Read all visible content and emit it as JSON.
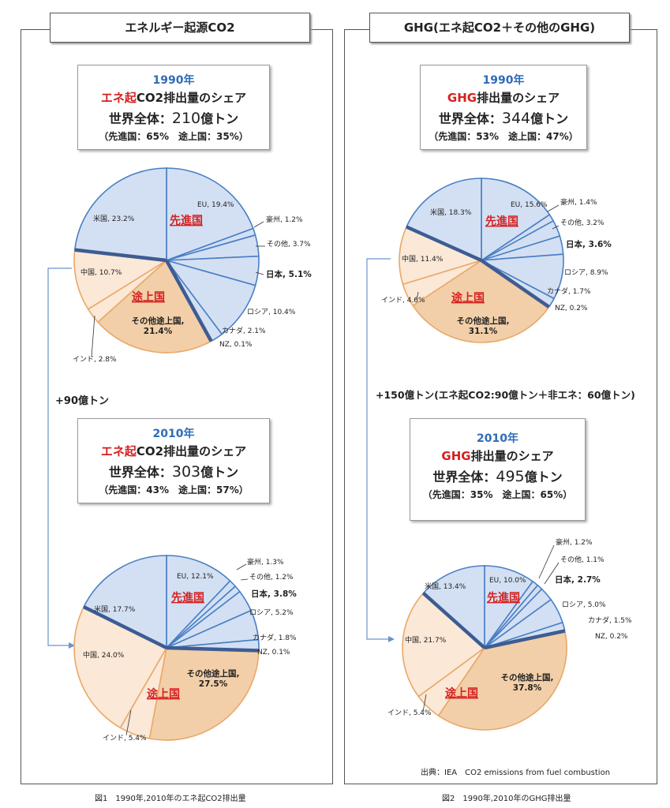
{
  "left_panel": {
    "title": "エネルギー起源CO2",
    "box1990": {
      "year": "1990年",
      "red": "エネ起",
      "rest": "CO2排出量のシェア",
      "total_prefix": "世界全体：",
      "total_num": "210",
      "total_suffix": "億トン",
      "split": "（先進国：65%　途上国：35%）"
    },
    "box2010": {
      "year": "2010年",
      "red": "エネ起",
      "rest": "CO2排出量のシェア",
      "total_prefix": "世界全体：",
      "total_num": "303",
      "total_suffix": "億トン",
      "split": "（先進国：43%　途上国：57%）"
    },
    "increase": "+90億トン",
    "caption": "図1　1990年,2010年のエネ起CO2排出量"
  },
  "right_panel": {
    "title": "GHG(エネ起CO2＋その他のGHG)",
    "box1990": {
      "year": "1990年",
      "red": "GHG",
      "rest": "排出量のシェア",
      "total_prefix": "世界全体：",
      "total_num": "344",
      "total_suffix": "億トン",
      "split": "（先進国：53%　途上国：47%）"
    },
    "box2010": {
      "year": "2010年",
      "red": "GHG",
      "rest": "排出量のシェア",
      "total_prefix": "世界全体：",
      "total_num": "495",
      "total_suffix": "億トン",
      "split": "（先進国：35%　途上国：65%）"
    },
    "increase": "+150億トン(エネ起CO2:90億トン＋非エネ：60億トン)",
    "source": "出典：IEA　CO2 emissions from fuel combustion",
    "caption": "図2　1990年,2010年のGHG排出量"
  },
  "colors": {
    "developed_fill": "#d3e0f3",
    "developed_stroke": "#4a7fc4",
    "developing_fill": "#fbe8d6",
    "other_dev_fill": "#f2cfa8",
    "developing_stroke": "#e9a86a",
    "divider": "#3d5c93",
    "title_red": "#d62020",
    "year_blue": "#2e6bb8"
  },
  "chart_data": [
    {
      "type": "pie",
      "title": "エネ起CO2 1990年",
      "group_labels": {
        "developed": "先進国",
        "developing": "途上国"
      },
      "slices": [
        {
          "label": "EU",
          "value": 19.4,
          "group": "developed",
          "text": "EU, 19.4%"
        },
        {
          "label": "豪州",
          "value": 1.2,
          "group": "developed",
          "text": "豪州, 1.2%"
        },
        {
          "label": "その他",
          "value": 3.7,
          "group": "developed",
          "text": "その他, 3.7%"
        },
        {
          "label": "日本",
          "value": 5.1,
          "group": "developed",
          "text": "日本, 5.1%"
        },
        {
          "label": "ロシア",
          "value": 10.4,
          "group": "developed",
          "text": "ロシア, 10.4%"
        },
        {
          "label": "カナダ",
          "value": 2.1,
          "group": "developed",
          "text": "カナダ, 2.1%"
        },
        {
          "label": "NZ",
          "value": 0.1,
          "group": "developed",
          "text": "NZ, 0.1%"
        },
        {
          "label": "その他途上国",
          "value": 21.4,
          "group": "developing",
          "text": "その他途上国,21.4%"
        },
        {
          "label": "インド",
          "value": 2.8,
          "group": "developing",
          "text": "インド, 2.8%"
        },
        {
          "label": "中国",
          "value": 10.7,
          "group": "developing",
          "text": "中国, 10.7%"
        },
        {
          "label": "米国",
          "value": 23.2,
          "group": "developed",
          "text": "米国, 23.2%"
        }
      ]
    },
    {
      "type": "pie",
      "title": "エネ起CO2 2010年",
      "group_labels": {
        "developed": "先進国",
        "developing": "途上国"
      },
      "slices": [
        {
          "label": "EU",
          "value": 12.1,
          "group": "developed",
          "text": "EU, 12.1%"
        },
        {
          "label": "豪州",
          "value": 1.3,
          "group": "developed",
          "text": "豪州, 1.3%"
        },
        {
          "label": "その他",
          "value": 1.2,
          "group": "developed",
          "text": "その他, 1.2%"
        },
        {
          "label": "日本",
          "value": 3.8,
          "group": "developed",
          "text": "日本, 3.8%"
        },
        {
          "label": "ロシア",
          "value": 5.2,
          "group": "developed",
          "text": "ロシア, 5.2%"
        },
        {
          "label": "カナダ",
          "value": 1.8,
          "group": "developed",
          "text": "カナダ, 1.8%"
        },
        {
          "label": "NZ",
          "value": 0.1,
          "group": "developed",
          "text": "NZ, 0.1%"
        },
        {
          "label": "その他途上国",
          "value": 27.5,
          "group": "developing",
          "text": "その他途上国,27.5%"
        },
        {
          "label": "インド",
          "value": 5.4,
          "group": "developing",
          "text": "インド, 5.4%"
        },
        {
          "label": "中国",
          "value": 24.0,
          "group": "developing",
          "text": "中国, 24.0%"
        },
        {
          "label": "米国",
          "value": 17.7,
          "group": "developed",
          "text": "米国, 17.7%"
        }
      ]
    },
    {
      "type": "pie",
      "title": "GHG 1990年",
      "group_labels": {
        "developed": "先進国",
        "developing": "途上国"
      },
      "slices": [
        {
          "label": "EU",
          "value": 15.6,
          "group": "developed",
          "text": "EU, 15.6%"
        },
        {
          "label": "豪州",
          "value": 1.4,
          "group": "developed",
          "text": "豪州, 1.4%"
        },
        {
          "label": "その他",
          "value": 3.2,
          "group": "developed",
          "text": "その他, 3.2%"
        },
        {
          "label": "日本",
          "value": 3.6,
          "group": "developed",
          "text": "日本, 3.6%"
        },
        {
          "label": "ロシア",
          "value": 8.9,
          "group": "developed",
          "text": "ロシア, 8.9%"
        },
        {
          "label": "カナダ",
          "value": 1.7,
          "group": "developed",
          "text": "カナダ, 1.7%"
        },
        {
          "label": "NZ",
          "value": 0.2,
          "group": "developed",
          "text": "NZ, 0.2%"
        },
        {
          "label": "その他途上国",
          "value": 31.1,
          "group": "developing",
          "text": "その他途上国,31.1%"
        },
        {
          "label": "インド",
          "value": 4.6,
          "group": "developing",
          "text": "インド, 4.6%"
        },
        {
          "label": "中国",
          "value": 11.4,
          "group": "developing",
          "text": "中国, 11.4%"
        },
        {
          "label": "米国",
          "value": 18.3,
          "group": "developed",
          "text": "米国, 18.3%"
        }
      ]
    },
    {
      "type": "pie",
      "title": "GHG 2010年",
      "group_labels": {
        "developed": "先進国",
        "developing": "途上国"
      },
      "slices": [
        {
          "label": "EU",
          "value": 10.0,
          "group": "developed",
          "text": "EU, 10.0%"
        },
        {
          "label": "豪州",
          "value": 1.2,
          "group": "developed",
          "text": "豪州, 1.2%"
        },
        {
          "label": "その他",
          "value": 1.1,
          "group": "developed",
          "text": "その他, 1.1%"
        },
        {
          "label": "日本",
          "value": 2.7,
          "group": "developed",
          "text": "日本, 2.7%"
        },
        {
          "label": "ロシア",
          "value": 5.0,
          "group": "developed",
          "text": "ロシア, 5.0%"
        },
        {
          "label": "カナダ",
          "value": 1.5,
          "group": "developed",
          "text": "カナダ, 1.5%"
        },
        {
          "label": "NZ",
          "value": 0.2,
          "group": "developed",
          "text": "NZ, 0.2%"
        },
        {
          "label": "その他途上国",
          "value": 37.8,
          "group": "developing",
          "text": "その他途上国,37.8%"
        },
        {
          "label": "インド",
          "value": 5.4,
          "group": "developing",
          "text": "インド, 5.4%"
        },
        {
          "label": "中国",
          "value": 21.7,
          "group": "developing",
          "text": "中国, 21.7%"
        },
        {
          "label": "米国",
          "value": 13.4,
          "group": "developed",
          "text": "米国, 13.4%"
        }
      ]
    }
  ]
}
